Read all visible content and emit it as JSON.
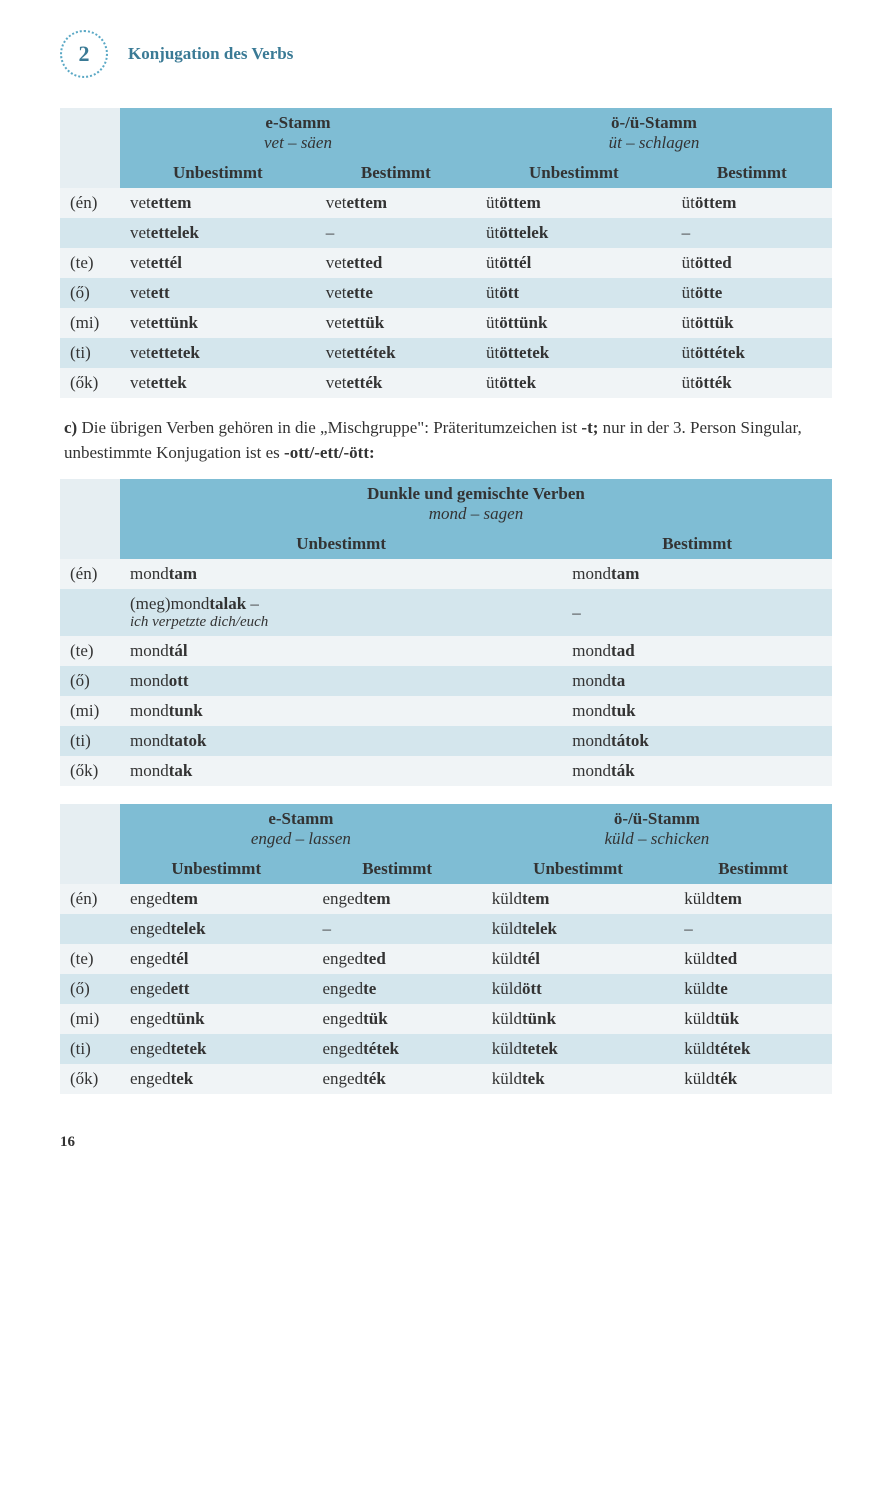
{
  "chapter": {
    "number": "2",
    "title": "Konjugation des Verbs"
  },
  "table1": {
    "h1a": "e-Stamm",
    "h1a2": "vet – säen",
    "h1b": "ö-/ü-Stamm",
    "h1b2": "üt – schlagen",
    "sub": [
      "Unbestimmt",
      "Bestimmt",
      "Unbestimmt",
      "Bestimmt"
    ],
    "rows": [
      {
        "p": "(én)",
        "c": [
          "vetettem",
          "vetettem",
          "ütöttem",
          "ütöttem"
        ]
      },
      {
        "p": "",
        "c": [
          "vetettelek",
          "–",
          "ütöttelek",
          "–"
        ]
      },
      {
        "p": "(te)",
        "c": [
          "vetettél",
          "vetetted",
          "ütöttél",
          "ütötted"
        ]
      },
      {
        "p": "(ő)",
        "c": [
          "vetett",
          "vetette",
          "ütött",
          "ütötte"
        ]
      },
      {
        "p": "(mi)",
        "c": [
          "vetettünk",
          "vetettük",
          "ütöttünk",
          "ütöttük"
        ]
      },
      {
        "p": "(ti)",
        "c": [
          "vetettetek",
          "vetettétek",
          "ütöttetek",
          "ütöttétek"
        ]
      },
      {
        "p": "(ők)",
        "c": [
          "vetettek",
          "vetették",
          "ütöttek",
          "ütötték"
        ]
      }
    ],
    "bold_from": [
      "ettem",
      "ettem",
      "öttem",
      "öttem",
      "ettelek",
      "",
      "öttelek",
      "",
      "ettél",
      "etted",
      "öttél",
      "ötted",
      "ett",
      "ette",
      "ött",
      "ötte",
      "ettünk",
      "ettük",
      "öttünk",
      "öttük",
      "ettetek",
      "ettétek",
      "öttetek",
      "öttétek",
      "ettek",
      "ették",
      "öttek",
      "ötték"
    ]
  },
  "para_c": {
    "label": "c)",
    "text1": "Die übrigen Verben gehören in die „Mischgruppe\": Präteritumzeichen ist ",
    "bold1": "-t;",
    "text2": " nur in der 3. Person Singular, unbestimmte Konjugation ist es ",
    "bold2": "-ott/-ett/-ött:"
  },
  "table2": {
    "title1": "Dunkle und gemischte Verben",
    "title2": "mond – sagen",
    "sub": [
      "Unbestimmt",
      "Bestimmt"
    ],
    "rows": [
      {
        "p": "(én)",
        "c": [
          "mondtam",
          "mondtam"
        ]
      },
      {
        "p": "",
        "c": [
          "(meg)mondtalak –",
          "–"
        ],
        "sub": "ich verpetzte dich/euch"
      },
      {
        "p": "(te)",
        "c": [
          "mondtál",
          "mondtad"
        ]
      },
      {
        "p": "(ő)",
        "c": [
          "mondott",
          "mondta"
        ]
      },
      {
        "p": "(mi)",
        "c": [
          "mondtunk",
          "mondtuk"
        ]
      },
      {
        "p": "(ti)",
        "c": [
          "mondtatok",
          "mondtátok"
        ]
      },
      {
        "p": "(ők)",
        "c": [
          "mondtak",
          "mondták"
        ]
      }
    ]
  },
  "table3": {
    "h1a": "e-Stamm",
    "h1a2": "enged – lassen",
    "h1b": "ö-/ü-Stamm",
    "h1b2": "küld – schicken",
    "sub": [
      "Unbestimmt",
      "Bestimmt",
      "Unbestimmt",
      "Bestimmt"
    ],
    "rows": [
      {
        "p": "(én)",
        "c": [
          "engedtem",
          "engedtem",
          "küldtem",
          "küldtem"
        ]
      },
      {
        "p": "",
        "c": [
          "engedtelek",
          "–",
          "küldtelek",
          "–"
        ]
      },
      {
        "p": "(te)",
        "c": [
          "engedtél",
          "engedted",
          "küldtél",
          "küldted"
        ]
      },
      {
        "p": "(ő)",
        "c": [
          "engedett",
          "engedte",
          "küldött",
          "küldte"
        ]
      },
      {
        "p": "(mi)",
        "c": [
          "engedtünk",
          "engedtük",
          "küldtünk",
          "küldtük"
        ]
      },
      {
        "p": "(ti)",
        "c": [
          "engedtetek",
          "engedtétek",
          "küldtetek",
          "küldtétek"
        ]
      },
      {
        "p": "(ők)",
        "c": [
          "engedtek",
          "engedték",
          "küldtek",
          "küldték"
        ]
      }
    ]
  },
  "page_num": "16"
}
